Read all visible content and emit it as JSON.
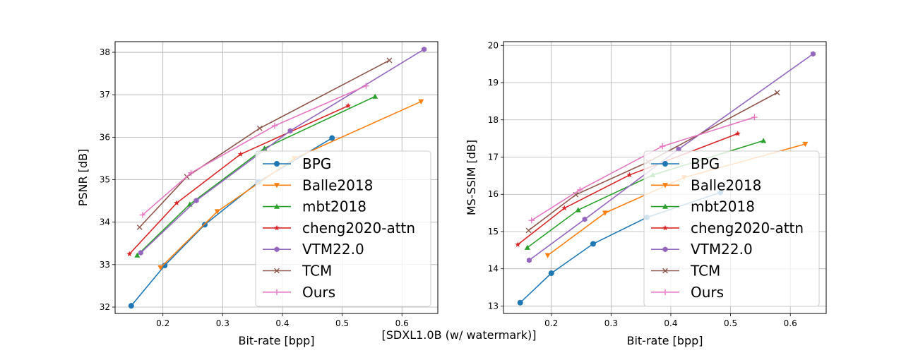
{
  "figure_caption": "[SDXL1.0B (w/ watermark)]",
  "series_styles": [
    {
      "name": "BPG",
      "color": "#1f77b4",
      "marker": "circle"
    },
    {
      "name": "Balle2018",
      "color": "#ff7f0e",
      "marker": "triangle-down"
    },
    {
      "name": "mbt2018",
      "color": "#2ca02c",
      "marker": "triangle-up"
    },
    {
      "name": "cheng2020-attn",
      "color": "#d62728",
      "marker": "star"
    },
    {
      "name": "VTM22.0",
      "color": "#9467bd",
      "marker": "hexagon"
    },
    {
      "name": "TCM",
      "color": "#8c564b",
      "marker": "x"
    },
    {
      "name": "Ours",
      "color": "#e377c2",
      "marker": "plus"
    }
  ],
  "chart_data": [
    {
      "type": "line",
      "title": "",
      "xlabel": "Bit-rate [bpp]",
      "ylabel": "PSNR [dB]",
      "xlim": [
        0.12,
        0.66
      ],
      "ylim": [
        31.85,
        38.25
      ],
      "xticks": [
        "0.2",
        "0.3",
        "0.4",
        "0.5",
        "0.6"
      ],
      "yticks": [
        "32",
        "33",
        "34",
        "35",
        "36",
        "37",
        "38"
      ],
      "grid": true,
      "legend_position": "lower-right",
      "series": [
        {
          "name": "BPG",
          "x": [
            0.147,
            0.203,
            0.27,
            0.36,
            0.483
          ],
          "y": [
            32.03,
            32.98,
            33.94,
            34.95,
            35.98
          ]
        },
        {
          "name": "Balle2018",
          "x": [
            0.196,
            0.291,
            0.42,
            0.632
          ],
          "y": [
            32.93,
            34.25,
            35.5,
            36.84
          ]
        },
        {
          "name": "mbt2018",
          "x": [
            0.157,
            0.245,
            0.37,
            0.555
          ],
          "y": [
            33.22,
            34.42,
            35.74,
            36.96
          ]
        },
        {
          "name": "cheng2020-attn",
          "x": [
            0.144,
            0.223,
            0.33,
            0.51
          ],
          "y": [
            33.25,
            34.45,
            35.6,
            36.74
          ]
        },
        {
          "name": "VTM22.0",
          "x": [
            0.163,
            0.256,
            0.413,
            0.637
          ],
          "y": [
            33.28,
            34.51,
            36.15,
            38.07
          ]
        },
        {
          "name": "TCM",
          "x": [
            0.161,
            0.24,
            0.362,
            0.579
          ],
          "y": [
            33.88,
            35.07,
            36.21,
            37.81
          ]
        },
        {
          "name": "Ours",
          "x": [
            0.166,
            0.247,
            0.387,
            0.54
          ],
          "y": [
            34.17,
            35.16,
            36.27,
            37.21
          ]
        }
      ]
    },
    {
      "type": "line",
      "title": "",
      "xlabel": "Bit-rate [bpp]",
      "ylabel": "MS-SSIM [dB]",
      "xlim": [
        0.12,
        0.66
      ],
      "ylim": [
        12.8,
        20.1
      ],
      "xticks": [
        "0.2",
        "0.3",
        "0.4",
        "0.5",
        "0.6"
      ],
      "yticks": [
        "13",
        "14",
        "15",
        "16",
        "17",
        "18",
        "19",
        "20"
      ],
      "grid": true,
      "legend_position": "lower-right",
      "series": [
        {
          "name": "BPG",
          "x": [
            0.148,
            0.2,
            0.27,
            0.36,
            0.483
          ],
          "y": [
            13.09,
            13.88,
            14.67,
            15.38,
            16.05
          ]
        },
        {
          "name": "Balle2018",
          "x": [
            0.194,
            0.29,
            0.422,
            0.625
          ],
          "y": [
            14.36,
            15.5,
            16.45,
            17.35
          ]
        },
        {
          "name": "mbt2018",
          "x": [
            0.16,
            0.245,
            0.37,
            0.555
          ],
          "y": [
            14.57,
            15.58,
            16.52,
            17.44
          ]
        },
        {
          "name": "cheng2020-attn",
          "x": [
            0.144,
            0.222,
            0.331,
            0.512
          ],
          "y": [
            14.65,
            15.63,
            16.52,
            17.63
          ]
        },
        {
          "name": "VTM22.0",
          "x": [
            0.163,
            0.256,
            0.413,
            0.638
          ],
          "y": [
            14.23,
            15.33,
            17.21,
            19.77
          ]
        },
        {
          "name": "TCM",
          "x": [
            0.162,
            0.241,
            0.362,
            0.578
          ],
          "y": [
            15.03,
            15.99,
            16.87,
            18.73
          ]
        },
        {
          "name": "Ours",
          "x": [
            0.167,
            0.248,
            0.386,
            0.54
          ],
          "y": [
            15.3,
            16.12,
            17.29,
            18.07
          ]
        }
      ]
    }
  ]
}
